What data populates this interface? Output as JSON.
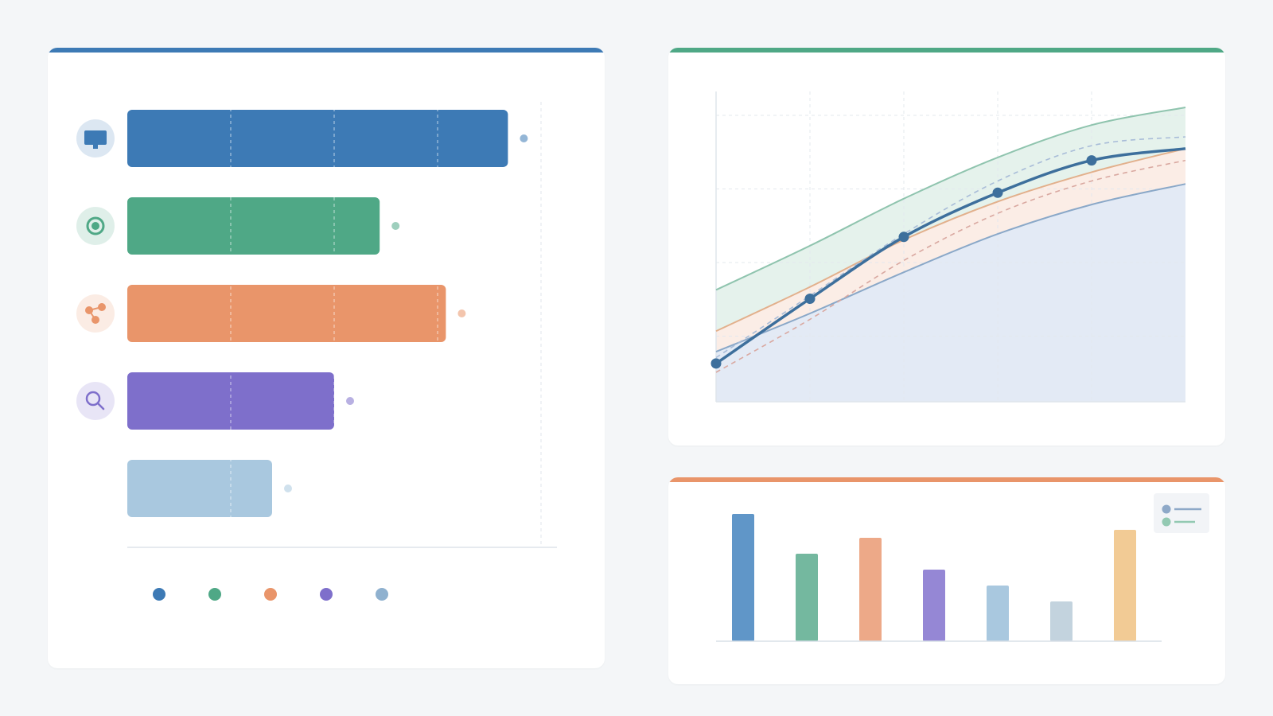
{
  "colors": {
    "blue": "#3d7ab5",
    "green": "#4fa886",
    "orange": "#e9956a",
    "purple": "#7e6fcb",
    "lightblue": "#a9c8df",
    "grey": "#c3d3de",
    "sand": "#f2cb95"
  },
  "cards": {
    "left_accent": "#3d7ab5",
    "top_right_accent": "#4fa886",
    "bottom_right_accent": "#e9956a"
  },
  "chart_data": [
    {
      "type": "bar",
      "orientation": "horizontal",
      "categories": [
        "",
        "",
        "",
        "",
        ""
      ],
      "icons": [
        "monitor-icon",
        "target-icon",
        "share-icon",
        "search-icon",
        ""
      ],
      "values": [
        92,
        61,
        77,
        50,
        35
      ],
      "xlim": [
        0,
        100
      ],
      "colors": [
        "#3d7ab5",
        "#4fa886",
        "#e9956a",
        "#7e6fcb",
        "#a9c8df"
      ],
      "grid": true,
      "legend": {
        "placement": "bottom",
        "entries": [
          "",
          "",
          "",
          "",
          ""
        ]
      }
    },
    {
      "type": "line",
      "x": [
        0,
        1,
        2,
        3,
        4,
        5
      ],
      "xlim": [
        0,
        5
      ],
      "ylim": [
        0,
        100
      ],
      "grid": true,
      "series": [
        {
          "style": "line-markers",
          "color": "#3d6f9c",
          "values": [
            13,
            35,
            56,
            71,
            82,
            86
          ]
        },
        {
          "style": "band-upper",
          "color": "#8fc4ae",
          "values": [
            38,
            53,
            69,
            83,
            94,
            100
          ]
        },
        {
          "style": "band-mid",
          "color": "#e2b08c",
          "values": [
            24,
            39,
            55,
            68,
            78,
            86
          ]
        },
        {
          "style": "area-lower",
          "color": "#8aa8c8",
          "values": [
            17,
            30,
            44,
            57,
            67,
            74
          ]
        },
        {
          "style": "dashed",
          "color": "#a8bcd8",
          "values": [
            15,
            36,
            57,
            75,
            87,
            90
          ]
        },
        {
          "style": "dashed",
          "color": "#d9a8a0",
          "values": [
            10,
            28,
            48,
            64,
            75,
            82
          ]
        }
      ]
    },
    {
      "type": "bar",
      "categories": [
        "",
        "",
        "",
        "",
        "",
        "",
        ""
      ],
      "values": [
        80,
        55,
        65,
        45,
        35,
        25,
        70
      ],
      "ylim": [
        0,
        80
      ],
      "colors": [
        "#6096c8",
        "#74b89f",
        "#eda988",
        "#9587d5",
        "#a9c8df",
        "#c3d3de",
        "#f2cb95"
      ],
      "legend": {
        "placement": "top-right",
        "entries": [
          "",
          ""
        ],
        "colors": [
          "#8ea9c8",
          "#93c9b2"
        ]
      }
    }
  ]
}
